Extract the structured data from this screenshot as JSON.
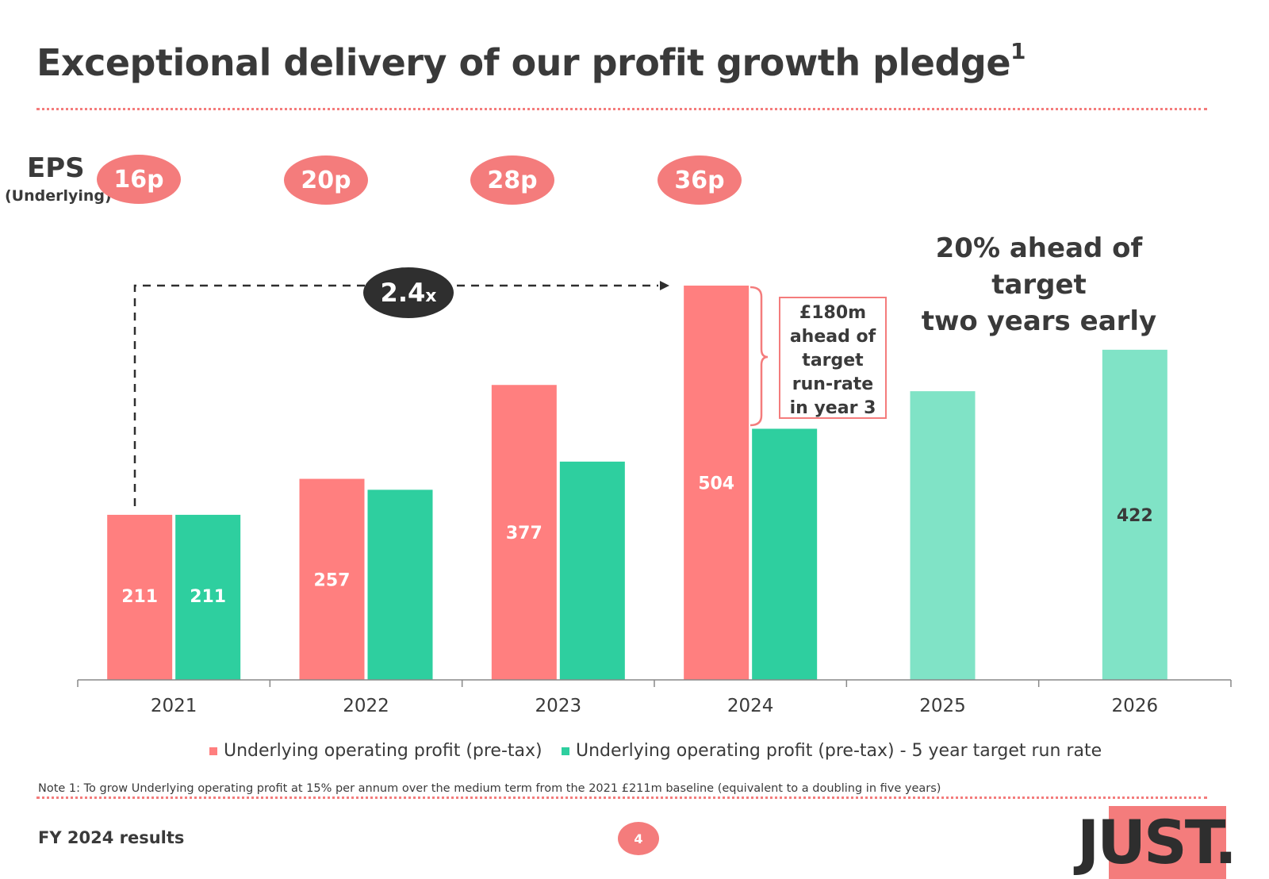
{
  "title": "Exceptional delivery of our profit growth pledge",
  "title_superscript": "1",
  "eps": {
    "label": "EPS",
    "sublabel": "(Underlying)",
    "values": [
      "16p",
      "20p",
      "28p",
      "36p"
    ]
  },
  "growth_multiple": {
    "value": "2.4",
    "suffix": "x"
  },
  "ahead_heading": {
    "line1": "20% ahead of target",
    "line2": "two years early"
  },
  "callout": {
    "lines": [
      "£180m",
      "ahead of",
      "target",
      "run-rate",
      "in year 3"
    ]
  },
  "chart_data": {
    "type": "bar",
    "categories": [
      "2021",
      "2022",
      "2023",
      "2024",
      "2025",
      "2026"
    ],
    "series": [
      {
        "name": "Underlying operating profit (pre-tax)",
        "color": "#ff7f7f",
        "values": [
          211,
          257,
          377,
          504,
          null,
          null
        ],
        "labels": [
          "211",
          "257",
          "377",
          "504",
          null,
          null
        ]
      },
      {
        "name": "Underlying operating profit (pre-tax) - 5 year target run rate",
        "color": "#2ecf9f",
        "projected_color": "#80e3c6",
        "values": [
          211,
          243,
          279,
          321,
          369,
          422
        ],
        "labels": [
          "211",
          null,
          null,
          null,
          null,
          "422"
        ]
      }
    ],
    "ylim": [
      0,
      510
    ],
    "xlabel": "",
    "ylabel": "",
    "grid": false,
    "legend": "bottom"
  },
  "note": "Note 1: To grow Underlying operating profit at 15% per annum over the medium term from the 2021 £211m baseline (equivalent to a doubling in five years)",
  "footer": {
    "label": "FY 2024 results",
    "page": "4",
    "logo": "JUST."
  },
  "colors": {
    "accent": "#f47c7c",
    "text": "#3a3a3a",
    "green": "#2ecf9f",
    "light_green": "#80e3c6",
    "dark": "#2f2f2f"
  }
}
